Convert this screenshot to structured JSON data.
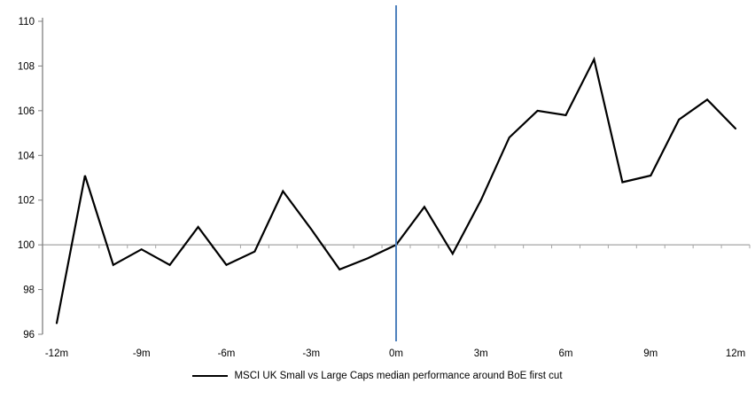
{
  "chart_data": {
    "type": "line",
    "title": "",
    "xlabel": "",
    "ylabel": "",
    "x_months": [
      -12,
      -11,
      -10,
      -9,
      -8,
      -7,
      -6,
      -5,
      -4,
      -3,
      -2,
      -1,
      0,
      1,
      2,
      3,
      4,
      5,
      6,
      7,
      8,
      9,
      10,
      11,
      12
    ],
    "series": [
      {
        "name": "MSCI UK Small vs Large Caps median performance around BoE first cut",
        "values": [
          96.5,
          103.1,
          99.1,
          99.8,
          99.1,
          100.8,
          99.1,
          99.7,
          102.4,
          100.7,
          98.9,
          99.4,
          100.0,
          101.7,
          99.6,
          102.0,
          104.8,
          106.0,
          105.8,
          108.3,
          102.8,
          103.1,
          105.6,
          106.5,
          105.2
        ]
      }
    ],
    "y_axis": {
      "min": 96,
      "max": 110,
      "step": 2,
      "tick_labels": [
        "96",
        "98",
        "100",
        "102",
        "104",
        "106",
        "108",
        "110"
      ]
    },
    "x_axis": {
      "tick_labels": [
        "-12m",
        "-9m",
        "-6m",
        "-3m",
        "0m",
        "3m",
        "6m",
        "9m",
        "12m"
      ],
      "tick_months": [
        -12,
        -9,
        -6,
        -3,
        0,
        3,
        6,
        9,
        12
      ]
    },
    "baseline_value": 100,
    "event_line_month": 0,
    "legend_position": "bottom",
    "grid": false,
    "colors": {
      "series": "#000000",
      "event_line": "#4f81bd",
      "baseline": "#a6a6a6",
      "axis": "#808080",
      "text": "#000000"
    }
  }
}
